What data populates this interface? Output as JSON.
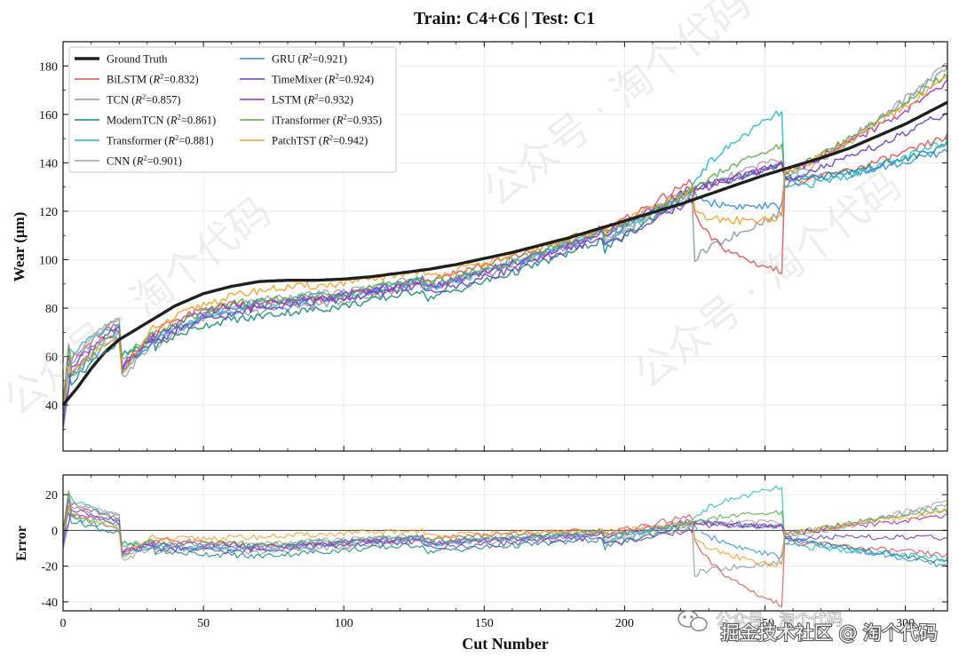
{
  "chart_data": {
    "type": "line",
    "title": "Train: C4+C6  |  Test: C1",
    "xlabel": "Cut Number",
    "main": {
      "ylabel": "Wear (μm)",
      "ylim": [
        21,
        190
      ],
      "yticks": [
        40,
        60,
        80,
        100,
        120,
        140,
        160,
        180
      ]
    },
    "error": {
      "ylabel": "Error",
      "ylim": [
        -45,
        31
      ],
      "yticks": [
        -40,
        -20,
        0,
        20
      ]
    },
    "xlim": [
      0,
      315
    ],
    "xticks": [
      0,
      50,
      100,
      150,
      200,
      250,
      300
    ],
    "legend": {
      "location": "top-left",
      "entries": [
        {
          "key": "gt",
          "label": "Ground Truth",
          "r2": "",
          "color": "#1f1f1f"
        },
        {
          "key": "bilstm",
          "label": "BiLSTM",
          "r2": "0.832",
          "color": "#d9534f"
        },
        {
          "key": "tcn",
          "label": "TCN",
          "r2": "0.857",
          "color": "#8c96a6"
        },
        {
          "key": "moderntcn",
          "label": "ModernTCN",
          "r2": "0.861",
          "color": "#16897a"
        },
        {
          "key": "transformer",
          "label": "Transformer",
          "r2": "0.881",
          "color": "#25b8c8"
        },
        {
          "key": "cnn",
          "label": "CNN",
          "r2": "0.901",
          "color": "#a3a3a3"
        },
        {
          "key": "gru",
          "label": "GRU",
          "r2": "0.921",
          "color": "#3b8fd9"
        },
        {
          "key": "timemixer",
          "label": "TimeMixer",
          "r2": "0.924",
          "color": "#6a3fc2"
        },
        {
          "key": "lstm",
          "label": "LSTM",
          "r2": "0.932",
          "color": "#a12fbf"
        },
        {
          "key": "itransformer",
          "label": "iTransformer",
          "r2": "0.935",
          "color": "#5cac4e"
        },
        {
          "key": "patchtst",
          "label": "PatchTST",
          "r2": "0.942",
          "color": "#f0a030"
        }
      ]
    },
    "ground_truth_curve": {
      "x": [
        0,
        5,
        10,
        15,
        20,
        30,
        40,
        50,
        60,
        70,
        80,
        90,
        100,
        110,
        120,
        130,
        140,
        150,
        160,
        170,
        180,
        190,
        200,
        210,
        220,
        230,
        240,
        250,
        260,
        270,
        280,
        290,
        300,
        315
      ],
      "y": [
        40,
        47,
        55,
        62,
        67,
        74,
        81,
        86,
        89,
        91,
        91.5,
        91.5,
        92,
        93,
        94.5,
        96,
        98,
        100.5,
        103,
        106,
        109,
        112.5,
        116,
        119.5,
        123,
        127,
        131,
        135,
        138.5,
        142,
        146,
        151,
        156,
        165
      ]
    },
    "model_bias": {
      "segments_x": [
        [
          0,
          2
        ],
        [
          2,
          20
        ],
        [
          20,
          32
        ],
        [
          32,
          64
        ],
        [
          64,
          128
        ],
        [
          128,
          192
        ],
        [
          192,
          224
        ],
        [
          224,
          256
        ],
        [
          256,
          315
        ]
      ],
      "bilstm": [
        [
          -5,
          14
        ],
        [
          15,
          6
        ],
        [
          -12,
          -6
        ],
        [
          -5,
          -8
        ],
        [
          -10,
          -5
        ],
        [
          -4,
          0
        ],
        [
          -2,
          8
        ],
        [
          2,
          -42
        ],
        [
          -6,
          -14
        ]
      ],
      "tcn": [
        [
          -10,
          4
        ],
        [
          12,
          10
        ],
        [
          -14,
          -8
        ],
        [
          -8,
          -11
        ],
        [
          -13,
          -6
        ],
        [
          -9,
          -2
        ],
        [
          -6,
          1
        ],
        [
          -26,
          -18
        ],
        [
          -3,
          14
        ]
      ],
      "moderntcn": [
        [
          -4,
          10
        ],
        [
          6,
          -2
        ],
        [
          -7,
          -10
        ],
        [
          -12,
          -14
        ],
        [
          -15,
          -8
        ],
        [
          -12,
          -5
        ],
        [
          -10,
          4
        ],
        [
          5,
          2
        ],
        [
          -4,
          -18
        ]
      ],
      "transformer": [
        [
          2,
          22
        ],
        [
          18,
          5
        ],
        [
          -16,
          -6
        ],
        [
          -10,
          -10
        ],
        [
          -11,
          -4
        ],
        [
          -8,
          -1
        ],
        [
          -6,
          5
        ],
        [
          4,
          24
        ],
        [
          -8,
          -16
        ]
      ],
      "cnn": [
        [
          -6,
          24
        ],
        [
          16,
          8
        ],
        [
          -17,
          -10
        ],
        [
          -12,
          -9
        ],
        [
          -8,
          -3
        ],
        [
          -7,
          -2
        ],
        [
          -5,
          3
        ],
        [
          3,
          5
        ],
        [
          -6,
          16
        ]
      ],
      "gru": [
        [
          -3,
          12
        ],
        [
          8,
          0
        ],
        [
          -13,
          -9
        ],
        [
          -9,
          -9
        ],
        [
          -9,
          -4
        ],
        [
          -7,
          -2
        ],
        [
          -4,
          4
        ],
        [
          6,
          -15
        ],
        [
          -4,
          -20
        ]
      ],
      "timemixer": [
        [
          -8,
          5
        ],
        [
          13,
          4
        ],
        [
          -12,
          -8
        ],
        [
          -10,
          -12
        ],
        [
          -11,
          -6
        ],
        [
          -10,
          -4
        ],
        [
          -8,
          0
        ],
        [
          6,
          2
        ],
        [
          -4,
          -4
        ]
      ],
      "lstm": [
        [
          -3,
          18
        ],
        [
          10,
          4
        ],
        [
          -13,
          -7
        ],
        [
          -8,
          -8
        ],
        [
          -10,
          -4
        ],
        [
          -7,
          -2
        ],
        [
          -3,
          5
        ],
        [
          4,
          2
        ],
        [
          -2,
          8
        ]
      ],
      "itransformer": [
        [
          -1,
          20
        ],
        [
          8,
          3
        ],
        [
          -9,
          -6
        ],
        [
          -8,
          -7
        ],
        [
          -9,
          -3
        ],
        [
          -6,
          -1
        ],
        [
          -3,
          4
        ],
        [
          4,
          10
        ],
        [
          -2,
          12
        ]
      ],
      "patchtst": [
        [
          -2,
          14
        ],
        [
          9,
          0
        ],
        [
          -15,
          -4
        ],
        [
          -5,
          -4
        ],
        [
          -4,
          0
        ],
        [
          -3,
          0
        ],
        [
          -1,
          4
        ],
        [
          -2,
          -20
        ],
        [
          -2,
          10
        ]
      ]
    }
  },
  "watermark": {
    "text": "公众号 · 淘个代码",
    "footer_brand": "掘金技术社区 @ 淘个代码",
    "footer_channel": "公众号 · 淘个代码"
  }
}
